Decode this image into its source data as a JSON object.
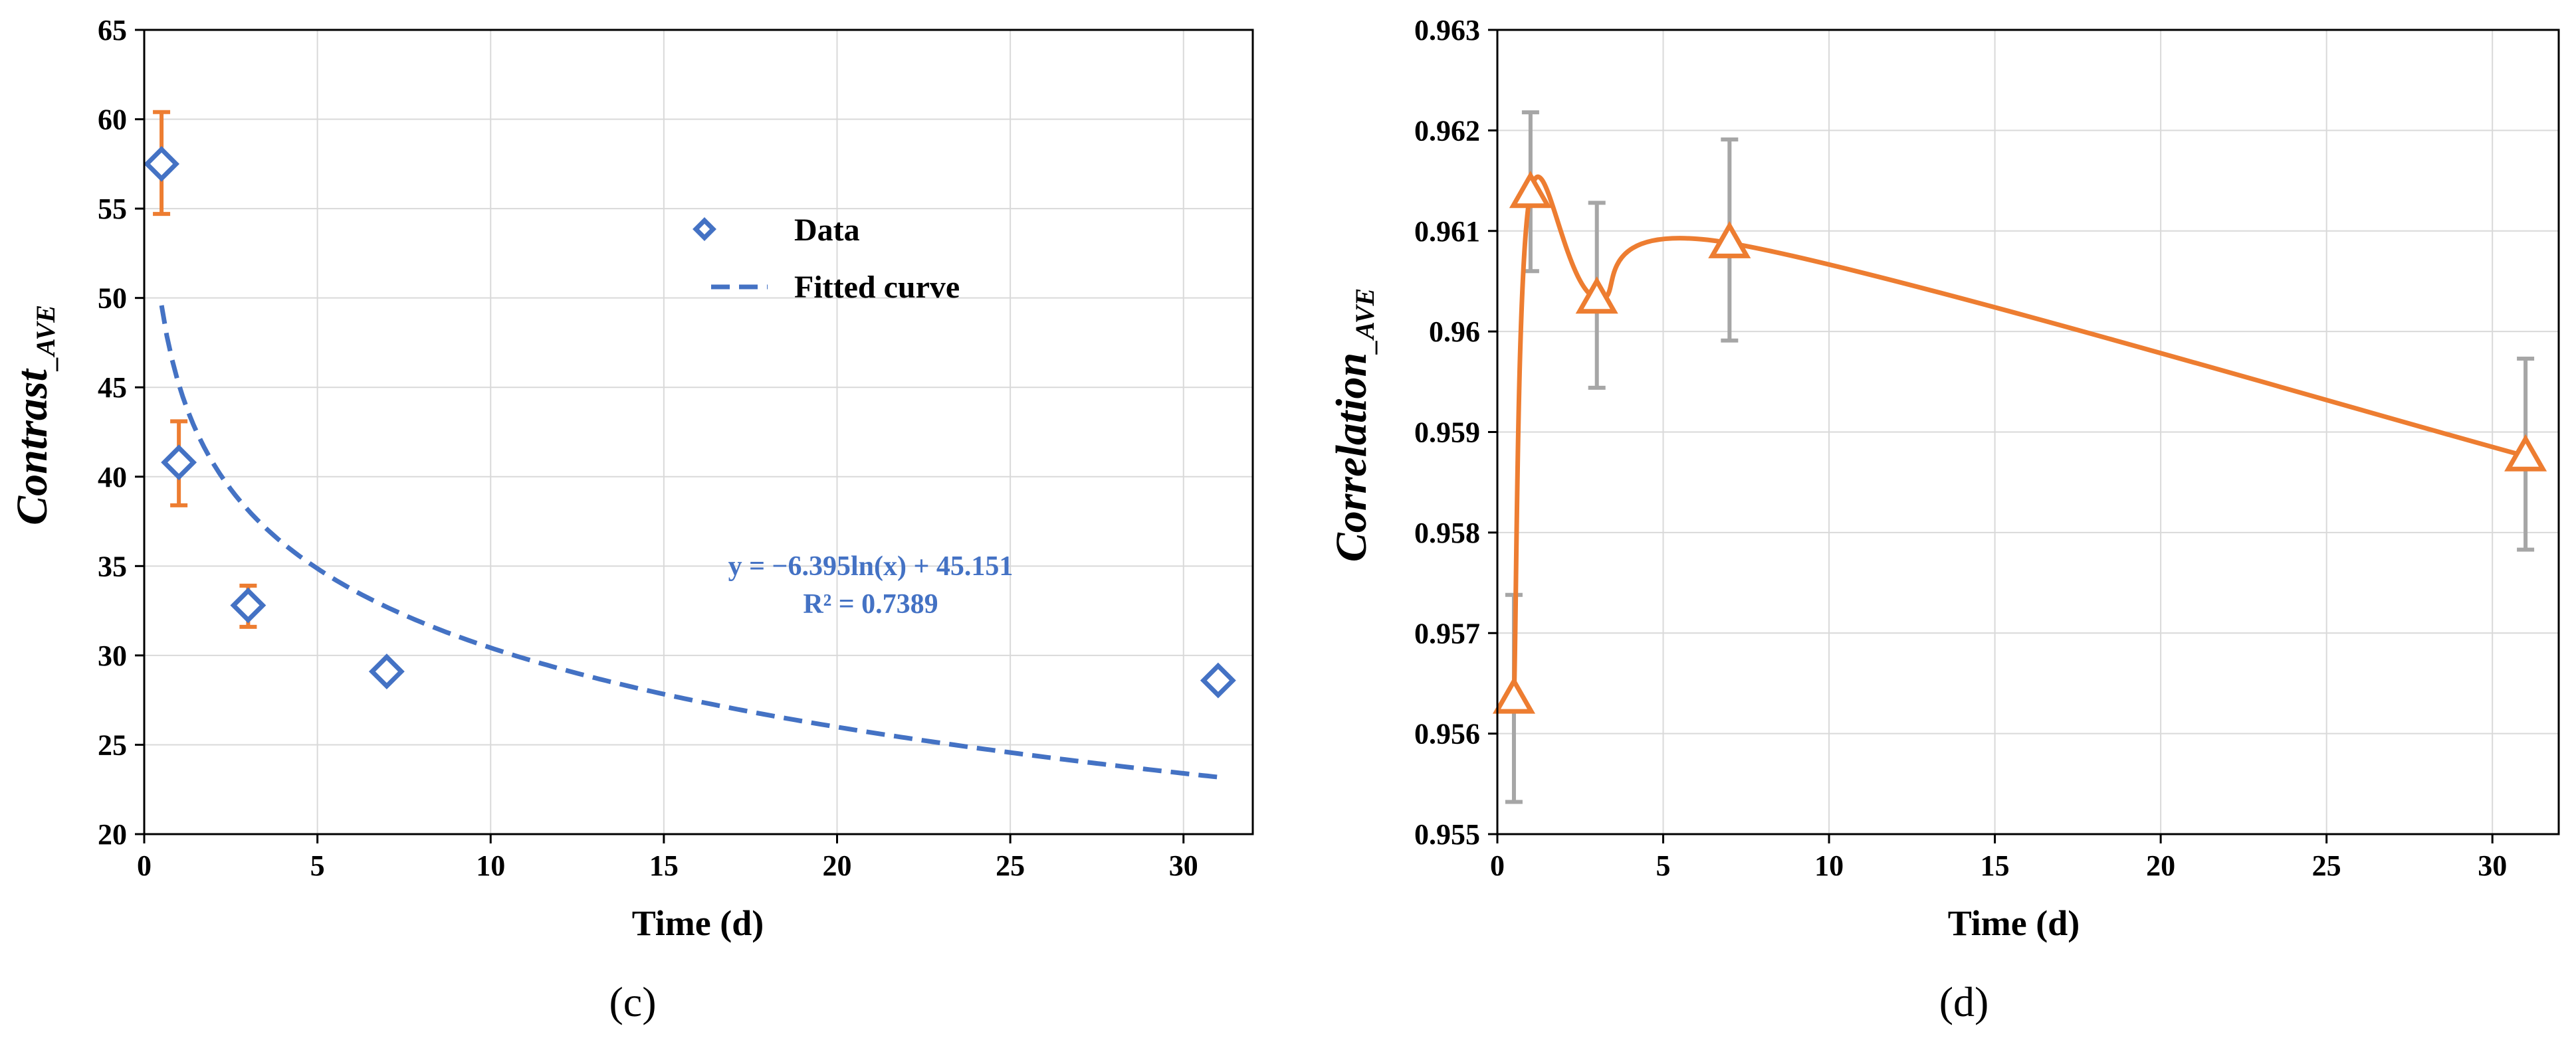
{
  "colors": {
    "blue": "#4472c4",
    "orange": "#ed7d31",
    "gray_error": "#a6a6a6",
    "grid": "#d9d9d9",
    "axis": "#000000",
    "text": "#000000"
  },
  "chart_data": [
    {
      "panel": "(c)",
      "type": "scatter",
      "xlabel": "Time (d)",
      "ylabel": "Contrast",
      "ylabel_sub": "_AVE",
      "xlim": [
        0,
        32
      ],
      "ylim": [
        20,
        65
      ],
      "xticks": [
        0,
        5,
        10,
        15,
        20,
        25,
        30
      ],
      "yticks": [
        20,
        25,
        30,
        35,
        40,
        45,
        50,
        55,
        60,
        65
      ],
      "grid": true,
      "legend_position": "top-right",
      "series": [
        {
          "name": "Data",
          "marker": "diamond",
          "x": [
            0.5,
            1,
            3,
            7,
            31
          ],
          "y": [
            57.5,
            40.8,
            32.8,
            29.1,
            28.6
          ],
          "err_high": [
            60.4,
            43.1,
            33.9,
            null,
            null
          ],
          "err_low": [
            54.7,
            38.4,
            31.6,
            null,
            null
          ]
        },
        {
          "name": "Fitted curve",
          "style": "dashed",
          "a": -6.395,
          "b": 45.151,
          "x_from": 0.5,
          "x_to": 31
        }
      ],
      "annotation": {
        "equation": "y = −6.395ln(x) + 45.151",
        "r2": "R² = 0.7389"
      }
    },
    {
      "panel": "(d)",
      "type": "line",
      "xlabel": "Time (d)",
      "ylabel": "Correlation",
      "ylabel_sub": "_AVE",
      "xlim": [
        0,
        32
      ],
      "ylim": [
        0.955,
        0.963
      ],
      "xticks": [
        0,
        5,
        10,
        15,
        20,
        25,
        30
      ],
      "yticks": [
        0.955,
        0.956,
        0.957,
        0.958,
        0.959,
        0.96,
        0.961,
        0.962,
        0.963
      ],
      "ytick_labels": [
        "0.955",
        "0.956",
        "0.957",
        "0.958",
        "0.959",
        "0.96",
        "0.961",
        "0.962",
        "0.963"
      ],
      "grid": true,
      "series": [
        {
          "name": "Correlation",
          "marker": "triangle",
          "smooth": true,
          "x": [
            0.5,
            1,
            3,
            7,
            31
          ],
          "y": [
            0.95635,
            0.96138,
            0.96033,
            0.96088,
            0.95876
          ],
          "err_high": [
            0.95738,
            0.96218,
            0.96128,
            0.96191,
            0.95973
          ],
          "err_low": [
            0.95532,
            0.9606,
            0.95944,
            0.95991,
            0.95783
          ]
        }
      ]
    }
  ]
}
